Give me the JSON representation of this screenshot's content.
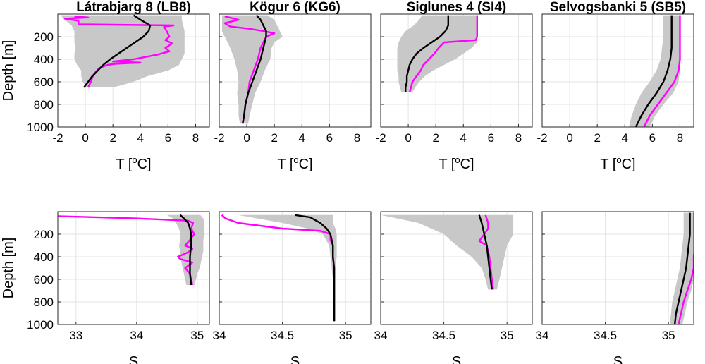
{
  "figure": {
    "colors": {
      "mean": "#000000",
      "profile": "#ff00ff",
      "envelope": "#c8c8c8",
      "grid": "#e3e3e3"
    }
  },
  "chart_data": [
    {
      "type": "line",
      "title": "Látrabjarg 8 (LB8)",
      "xlabel_main": "T [",
      "xlabel_sup": "o",
      "xlabel_tail": "C]",
      "ylabel": "Depth [m]",
      "xlim": [
        -2,
        9
      ],
      "ylim": [
        1000,
        0
      ],
      "xticks": [
        "-2",
        "0",
        "2",
        "4",
        "6",
        "8"
      ],
      "yticks": [
        "200",
        "400",
        "600",
        "800",
        "1000"
      ],
      "show_ytick_labels": true,
      "envelope": {
        "depth": [
          10,
          50,
          100,
          150,
          200,
          250,
          300,
          350,
          400,
          450,
          500,
          550,
          600,
          650
        ],
        "min": [
          -1.8,
          -1.5,
          -1.0,
          -0.8,
          -0.8,
          -0.8,
          -0.7,
          -0.8,
          -0.8,
          -0.6,
          -0.3,
          -0.3,
          -0.2,
          0.1
        ],
        "max": [
          7.0,
          7.0,
          7.1,
          7.2,
          7.2,
          7.2,
          7.2,
          7.2,
          7.0,
          6.8,
          6.0,
          4.5,
          3.5,
          2.0
        ]
      },
      "series": [
        {
          "role": "mean",
          "depth": [
            10,
            50,
            100,
            150,
            200,
            250,
            300,
            350,
            400,
            450,
            500,
            550,
            600,
            650
          ],
          "values": [
            3.5,
            4.0,
            4.7,
            4.6,
            4.2,
            3.6,
            3.0,
            2.4,
            1.8,
            1.3,
            0.9,
            0.5,
            0.2,
            -0.1
          ]
        },
        {
          "role": "profile",
          "depth": [
            20,
            30,
            40,
            60,
            90,
            100,
            110,
            150,
            200,
            230,
            260,
            300,
            330,
            360,
            400,
            420,
            430,
            440,
            450,
            480,
            520,
            560,
            600,
            650
          ],
          "values": [
            -0.8,
            0.2,
            -1.5,
            -0.5,
            -0.5,
            6.4,
            5.7,
            5.9,
            6.1,
            5.8,
            6.3,
            5.8,
            6.1,
            5.2,
            3.5,
            2.0,
            4.0,
            2.2,
            1.6,
            1.0,
            0.7,
            0.5,
            0.4,
            0.2
          ]
        }
      ]
    },
    {
      "type": "line",
      "title": "Kögur 6 (KG6)",
      "xlabel_main": "T [",
      "xlabel_sup": "o",
      "xlabel_tail": "C]",
      "ylabel": "",
      "xlim": [
        -2,
        9
      ],
      "ylim": [
        1000,
        0
      ],
      "xticks": [
        "-2",
        "0",
        "2",
        "4",
        "6",
        "8"
      ],
      "yticks": [],
      "show_ytick_labels": false,
      "envelope": {
        "depth": [
          10,
          50,
          100,
          150,
          200,
          250,
          300,
          400,
          500,
          600,
          700,
          800,
          900,
          970
        ],
        "min": [
          -1.8,
          -1.8,
          -1.8,
          -1.8,
          -1.6,
          -1.4,
          -1.2,
          -0.9,
          -0.7,
          -0.6,
          -0.7,
          -0.6,
          -0.6,
          -0.5
        ],
        "max": [
          1.5,
          2.0,
          2.2,
          2.4,
          2.6,
          2.0,
          1.8,
          1.7,
          1.3,
          1.0,
          0.6,
          0.4,
          0.2,
          0.1
        ]
      },
      "series": [
        {
          "role": "mean",
          "depth": [
            10,
            50,
            100,
            150,
            200,
            250,
            300,
            400,
            500,
            600,
            700,
            800,
            900,
            970
          ],
          "values": [
            0.7,
            1.0,
            1.2,
            1.4,
            1.4,
            1.3,
            1.2,
            1.0,
            0.7,
            0.4,
            0.1,
            -0.1,
            -0.2,
            -0.3
          ]
        },
        {
          "role": "profile",
          "depth": [
            20,
            50,
            80,
            110,
            130,
            150,
            170,
            200,
            250,
            300,
            400,
            500,
            600,
            700,
            800,
            900,
            970
          ],
          "values": [
            -1.6,
            -0.6,
            -1.6,
            -1.2,
            0.2,
            1.2,
            2.0,
            1.4,
            1.2,
            1.0,
            0.8,
            0.5,
            0.2,
            0.1,
            -0.1,
            -0.2,
            -0.3
          ]
        }
      ]
    },
    {
      "type": "line",
      "title": "Siglunes 4 (SI4)",
      "xlabel_main": "T [",
      "xlabel_sup": "o",
      "xlabel_tail": "C]",
      "ylabel": "",
      "xlim": [
        -2,
        9
      ],
      "ylim": [
        1000,
        0
      ],
      "xticks": [
        "-2",
        "0",
        "2",
        "4",
        "6",
        "8"
      ],
      "yticks": [],
      "show_ytick_labels": false,
      "envelope": {
        "depth": [
          10,
          50,
          100,
          150,
          200,
          250,
          300,
          350,
          400,
          450,
          500,
          550,
          600,
          650,
          690
        ],
        "min": [
          1.0,
          0.8,
          0.4,
          -0.2,
          -0.5,
          -0.7,
          -0.8,
          -0.8,
          -0.8,
          -0.8,
          -0.8,
          -0.7,
          -0.7,
          -0.6,
          -0.5
        ],
        "max": [
          5.0,
          5.0,
          5.0,
          5.0,
          5.0,
          5.0,
          4.6,
          4.0,
          3.4,
          2.6,
          1.8,
          1.2,
          0.8,
          0.5,
          0.3
        ]
      },
      "series": [
        {
          "role": "mean",
          "depth": [
            10,
            50,
            100,
            150,
            200,
            250,
            300,
            350,
            400,
            450,
            500,
            550,
            600,
            650,
            690
          ],
          "values": [
            2.9,
            2.9,
            2.9,
            2.7,
            2.3,
            1.7,
            1.1,
            0.6,
            0.3,
            0.1,
            0.0,
            -0.1,
            -0.1,
            -0.2,
            -0.2
          ]
        },
        {
          "role": "profile",
          "depth": [
            10,
            100,
            200,
            230,
            250,
            300,
            350,
            400,
            450,
            500,
            550,
            600,
            650,
            690
          ],
          "values": [
            5.0,
            5.0,
            5.0,
            4.9,
            2.6,
            2.2,
            1.9,
            1.5,
            1.1,
            0.9,
            0.6,
            0.3,
            0.2,
            0.1
          ]
        }
      ]
    },
    {
      "type": "line",
      "title": "Selvogsbanki 5 (SB5)",
      "xlabel_main": "T [",
      "xlabel_sup": "o",
      "xlabel_tail": "C]",
      "ylabel": "",
      "xlim": [
        -2,
        9
      ],
      "ylim": [
        1000,
        0
      ],
      "xticks": [
        "-2",
        "0",
        "2",
        "4",
        "6",
        "8"
      ],
      "yticks": [],
      "show_ytick_labels": false,
      "envelope": {
        "depth": [
          10,
          100,
          200,
          300,
          400,
          500,
          600,
          700,
          800,
          900,
          1000
        ],
        "min": [
          6.8,
          6.8,
          6.8,
          6.7,
          6.6,
          6.3,
          5.8,
          5.2,
          4.8,
          4.5,
          4.3
        ],
        "max": [
          8.0,
          8.0,
          8.0,
          8.0,
          8.0,
          8.0,
          7.9,
          7.5,
          6.8,
          6.2,
          5.8
        ]
      },
      "series": [
        {
          "role": "mean",
          "depth": [
            10,
            100,
            200,
            300,
            400,
            500,
            600,
            700,
            800,
            900,
            1000
          ],
          "values": [
            7.4,
            7.4,
            7.4,
            7.4,
            7.3,
            7.1,
            6.8,
            6.3,
            5.7,
            5.2,
            4.8
          ]
        },
        {
          "role": "profile",
          "depth": [
            10,
            100,
            200,
            300,
            400,
            500,
            600,
            700,
            800,
            900,
            1000
          ],
          "values": [
            8.0,
            8.0,
            8.0,
            8.0,
            8.0,
            7.9,
            7.6,
            7.0,
            6.4,
            5.8,
            5.4
          ]
        }
      ]
    },
    {
      "type": "line",
      "title": "",
      "xlabel_main": "S",
      "xlabel_sup": "",
      "xlabel_tail": "",
      "ylabel": "Depth [m]",
      "xlim": [
        32.7,
        35.2
      ],
      "ylim": [
        1000,
        0
      ],
      "xticks": [
        "33",
        "34",
        "35"
      ],
      "yticks": [
        "200",
        "400",
        "600",
        "800",
        "1000"
      ],
      "show_ytick_labels": true,
      "envelope": {
        "depth": [
          30,
          60,
          100,
          150,
          200,
          250,
          300,
          350,
          400,
          450,
          500,
          550,
          600,
          650
        ],
        "min": [
          34.5,
          34.6,
          34.65,
          34.7,
          34.72,
          34.72,
          34.7,
          34.72,
          34.72,
          34.74,
          34.76,
          34.78,
          34.8,
          34.82
        ],
        "max": [
          35.05,
          35.1,
          35.12,
          35.12,
          35.12,
          35.1,
          35.1,
          35.1,
          35.08,
          35.06,
          35.04,
          35.0,
          34.98,
          34.95
        ]
      },
      "series": [
        {
          "role": "mean",
          "depth": [
            30,
            60,
            100,
            150,
            200,
            250,
            300,
            350,
            400,
            450,
            500,
            550,
            600,
            650
          ],
          "values": [
            34.72,
            34.78,
            34.85,
            34.88,
            34.9,
            34.9,
            34.9,
            34.89,
            34.88,
            34.88,
            34.88,
            34.88,
            34.89,
            34.9
          ]
        },
        {
          "role": "profile",
          "depth": [
            40,
            60,
            80,
            100,
            120,
            150,
            200,
            250,
            300,
            330,
            360,
            400,
            420,
            450,
            500,
            550,
            600,
            650
          ],
          "values": [
            32.7,
            34.0,
            34.85,
            34.93,
            34.92,
            34.9,
            34.95,
            34.88,
            34.8,
            34.92,
            34.85,
            34.68,
            34.72,
            34.92,
            34.8,
            34.88,
            34.9,
            34.92
          ]
        }
      ]
    },
    {
      "type": "line",
      "title": "",
      "xlabel_main": "S",
      "xlabel_sup": "",
      "xlabel_tail": "",
      "ylabel": "",
      "xlim": [
        34.0,
        35.2
      ],
      "ylim": [
        1000,
        0
      ],
      "xticks": [
        "34",
        "34.5",
        "35"
      ],
      "yticks": [],
      "show_ytick_labels": false,
      "envelope": {
        "depth": [
          30,
          60,
          100,
          150,
          200,
          300,
          400,
          500,
          600,
          700,
          800,
          900,
          970
        ],
        "min": [
          34.15,
          34.3,
          34.5,
          34.7,
          34.82,
          34.87,
          34.88,
          34.89,
          34.9,
          34.9,
          34.9,
          34.9,
          34.91
        ],
        "max": [
          34.9,
          34.9,
          34.9,
          34.92,
          34.93,
          34.93,
          34.93,
          34.92,
          34.92,
          34.92,
          34.92,
          34.92,
          34.92
        ]
      },
      "series": [
        {
          "role": "mean",
          "depth": [
            30,
            50,
            100,
            150,
            200,
            300,
            400,
            500,
            600,
            700,
            800,
            900,
            970
          ],
          "values": [
            34.6,
            34.72,
            34.8,
            34.85,
            34.88,
            34.9,
            34.9,
            34.91,
            34.91,
            34.91,
            34.91,
            34.91,
            34.91
          ]
        },
        {
          "role": "profile",
          "depth": [
            30,
            60,
            100,
            150,
            170,
            200,
            250,
            300,
            400,
            500,
            600,
            700,
            800,
            900,
            970
          ],
          "values": [
            34.02,
            34.05,
            34.15,
            34.5,
            34.8,
            34.88,
            34.88,
            34.9,
            34.9,
            34.91,
            34.91,
            34.91,
            34.91,
            34.91,
            34.91
          ]
        }
      ]
    },
    {
      "type": "line",
      "title": "",
      "xlabel_main": "S",
      "xlabel_sup": "",
      "xlabel_tail": "",
      "ylabel": "",
      "xlim": [
        34.0,
        35.2
      ],
      "ylim": [
        1000,
        0
      ],
      "xticks": [
        "34",
        "34.5",
        "35"
      ],
      "yticks": [],
      "show_ytick_labels": false,
      "envelope": {
        "depth": [
          30,
          100,
          200,
          300,
          400,
          500,
          600,
          690
        ],
        "min": [
          34.0,
          34.3,
          34.5,
          34.6,
          34.72,
          34.8,
          34.83,
          34.85
        ],
        "max": [
          35.05,
          35.05,
          35.05,
          35.0,
          34.98,
          34.96,
          34.94,
          34.92
        ]
      },
      "series": [
        {
          "role": "mean",
          "depth": [
            30,
            100,
            200,
            300,
            400,
            500,
            600,
            690
          ],
          "values": [
            34.78,
            34.8,
            34.82,
            34.84,
            34.85,
            34.86,
            34.87,
            34.88
          ]
        },
        {
          "role": "profile",
          "depth": [
            30,
            100,
            150,
            200,
            230,
            260,
            300,
            400,
            500,
            600,
            690
          ],
          "values": [
            34.83,
            34.85,
            34.85,
            34.82,
            34.8,
            34.78,
            34.84,
            34.86,
            34.87,
            34.88,
            34.89
          ]
        }
      ]
    },
    {
      "type": "line",
      "title": "",
      "xlabel_main": "S",
      "xlabel_sup": "",
      "xlabel_tail": "",
      "ylabel": "",
      "xlim": [
        34.0,
        35.2
      ],
      "ylim": [
        1000,
        0
      ],
      "xticks": [
        "34",
        "34.5",
        "35"
      ],
      "yticks": [],
      "show_ytick_labels": false,
      "envelope": {
        "depth": [
          10,
          100,
          200,
          300,
          400,
          500,
          600,
          700,
          800,
          900,
          1000
        ],
        "min": [
          35.12,
          35.12,
          35.12,
          35.11,
          35.1,
          35.09,
          35.07,
          35.05,
          35.03,
          35.02,
          35.01
        ],
        "max": [
          35.22,
          35.22,
          35.22,
          35.22,
          35.21,
          35.21,
          35.2,
          35.18,
          35.15,
          35.13,
          35.11
        ]
      },
      "series": [
        {
          "role": "mean",
          "depth": [
            10,
            100,
            200,
            300,
            400,
            500,
            600,
            700,
            800,
            900,
            1000
          ],
          "values": [
            35.17,
            35.17,
            35.17,
            35.16,
            35.15,
            35.14,
            35.12,
            35.1,
            35.08,
            35.06,
            35.05
          ]
        },
        {
          "role": "profile",
          "depth": [
            10,
            100,
            200,
            300,
            400,
            500,
            600,
            700,
            800,
            900,
            1000
          ],
          "values": [
            35.21,
            35.21,
            35.21,
            35.21,
            35.2,
            35.2,
            35.18,
            35.15,
            35.12,
            35.1,
            35.08
          ]
        }
      ]
    }
  ]
}
